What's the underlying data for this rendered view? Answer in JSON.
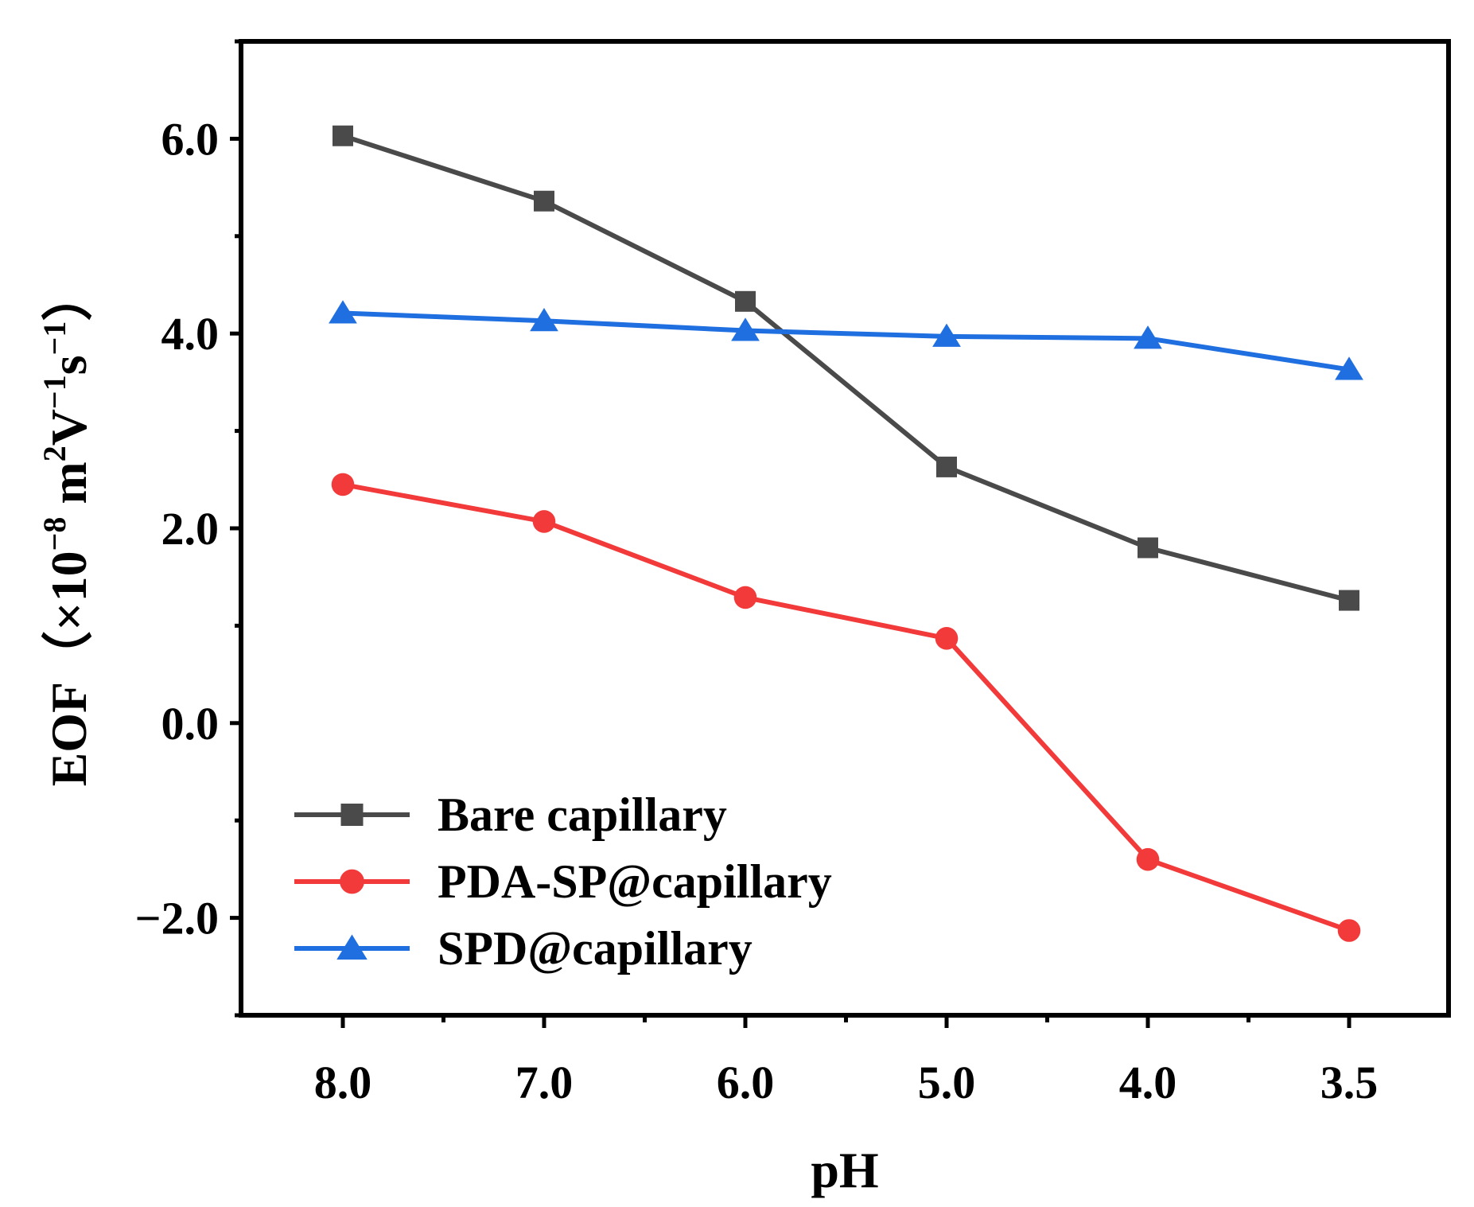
{
  "chart_data": {
    "type": "line",
    "title": "",
    "xlabel": "pH",
    "ylabel": {
      "prefix": "EOF（×10",
      "exp1": "−8",
      "mid1": " m",
      "exp2": "2",
      "mid2": "V",
      "exp3": "−1",
      "mid3": "s",
      "exp4": "−1",
      "suffix": "）"
    },
    "categories": [
      "8.0",
      "7.0",
      "6.0",
      "5.0",
      "4.0",
      "3.5"
    ],
    "y_ticks": [
      {
        "value": -2.0,
        "label": "−2.0"
      },
      {
        "value": 0.0,
        "label": "0.0"
      },
      {
        "value": 2.0,
        "label": "2.0"
      },
      {
        "value": 4.0,
        "label": "4.0"
      },
      {
        "value": 6.0,
        "label": "6.0"
      }
    ],
    "ylim": [
      -3.0,
      7.0
    ],
    "legend_position": "bottom-left",
    "grid": false,
    "series": [
      {
        "name": "Bare capillary",
        "color": "#4a4a4a",
        "marker": "square",
        "values": [
          6.03,
          5.36,
          4.33,
          2.63,
          1.8,
          1.26
        ]
      },
      {
        "name": "PDA-SP@capillary",
        "color": "#f23a3a",
        "marker": "circle",
        "values": [
          2.45,
          2.07,
          1.29,
          0.87,
          -1.4,
          -2.13
        ]
      },
      {
        "name": "SPD@capillary",
        "color": "#1f6fe0",
        "marker": "triangle",
        "values": [
          4.21,
          4.13,
          4.03,
          3.97,
          3.95,
          3.63
        ]
      }
    ]
  }
}
